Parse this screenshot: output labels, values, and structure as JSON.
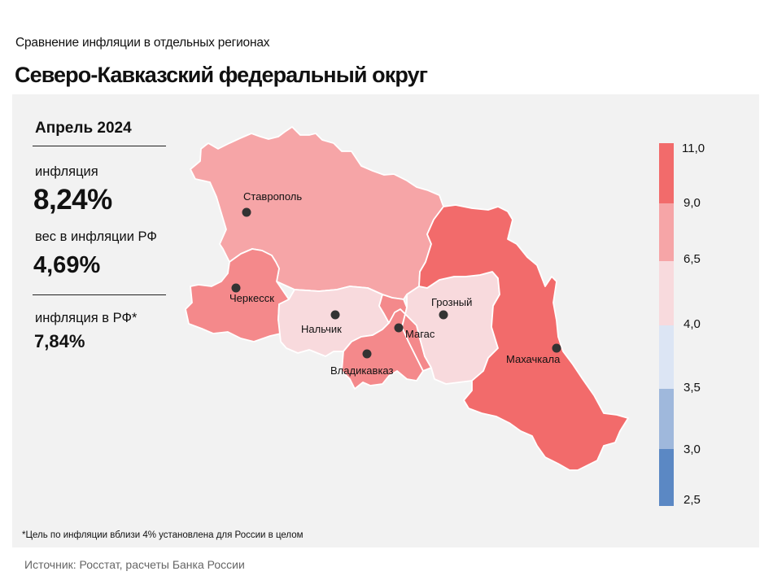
{
  "header": {
    "subtitle": "Сравнение  инфляции  в отдельных  регионах",
    "title": "Северо-Кавказский федеральный округ"
  },
  "stats": {
    "period": "Апрель 2024",
    "inflation_label": "инфляция",
    "inflation_value": "8,24%",
    "weight_label": "вес в инфляции  РФ",
    "weight_value": "4,69%",
    "rf_label": "инфляция  в РФ*",
    "rf_value": "7,84%"
  },
  "cities": [
    "Ставрополь",
    "Черкесск",
    "Нальчик",
    "Владикавказ",
    "Магас",
    "Грозный",
    "Махачкала"
  ],
  "legend": {
    "ticks": [
      "11,0",
      "9,0",
      "6,5",
      "4,0",
      "3,5",
      "3,0",
      "2,5"
    ],
    "colors": [
      "#f26b6b",
      "#f6a5a7",
      "#f8dadd",
      "#dce5f4",
      "#9fb8dc",
      "#5b88c4"
    ]
  },
  "region_colors": {
    "stavropol": "#f6a5a7",
    "karachay_cherkessia": "#f4898b",
    "kabardino_balkaria": "#f8dadd",
    "north_ossetia": "#f4898b",
    "ingushetia": "#f4898b",
    "chechnya": "#f8dadd",
    "dagestan": "#f26b6b"
  },
  "footnote": "*Цель по инфляции вблизи 4% установлена для России в целом",
  "source": "Источник: Росстат, расчеты Банка России"
}
